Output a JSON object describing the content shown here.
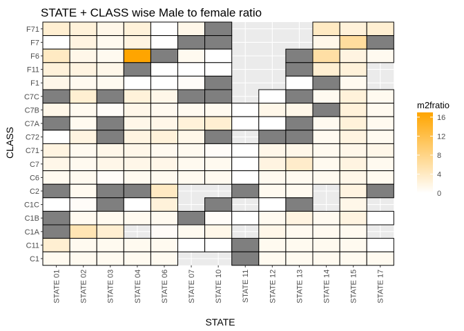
{
  "colors": {
    "panel_background": "#ebebeb",
    "grid_line": "#ffffff",
    "tile_border": "#000000",
    "na_fill": "#7f7f7f",
    "low": "#ffffff",
    "high": "#ffa500"
  },
  "chart_data": {
    "type": "heatmap",
    "title": "STATE + CLASS wise Male to female ratio",
    "xlabel": "STATE",
    "ylabel": "CLASS",
    "x": [
      "STATE 01",
      "STATE 02",
      "STATE 03",
      "STATE 04",
      "STATE 06",
      "STATE 07",
      "STATE 10",
      "STATE 11",
      "STATE 12",
      "STATE 13",
      "STATE 14",
      "STATE 15",
      "STATE 17"
    ],
    "y": [
      "F71",
      "F7",
      "F6",
      "F11",
      "F1",
      "C7C",
      "C7B",
      "C7A",
      "C72",
      "C71",
      "C7",
      "C6",
      "C2",
      "C1C",
      "C1B",
      "C1A",
      "C11",
      "C1"
    ],
    "legend": {
      "title": "m2fratio",
      "breaks": [
        16,
        12,
        8,
        4,
        0
      ],
      "range": [
        0,
        17
      ],
      "position": "right"
    },
    "note": "null = missing tile (panel background visible); \"NA\" = gray NA tile",
    "values": [
      [
        3,
        2.5,
        1.5,
        2.5,
        0,
        1.5,
        "NA",
        null,
        null,
        null,
        4,
        2.5,
        3
      ],
      [
        0,
        2,
        1,
        2,
        0,
        "NA",
        "NA",
        null,
        null,
        null,
        1.5,
        6.5,
        "NA"
      ],
      [
        4,
        1.5,
        1,
        17,
        "NA",
        1,
        0,
        null,
        null,
        "NA",
        6,
        2,
        1
      ],
      [
        2.5,
        2,
        1.5,
        "NA",
        0,
        0,
        0,
        null,
        null,
        "NA",
        3,
        2.5,
        null
      ],
      [
        1.5,
        1,
        1,
        0,
        0,
        0.5,
        "NA",
        null,
        null,
        0,
        "NA",
        1,
        null
      ],
      [
        "NA",
        3,
        "NA",
        2.5,
        1.5,
        "NA",
        "NA",
        null,
        0,
        "NA",
        1,
        2.5,
        1
      ],
      [
        1.5,
        1,
        0.5,
        1.5,
        1,
        1,
        1,
        0,
        1.5,
        1.5,
        "NA",
        2.5,
        1
      ],
      [
        "NA",
        1,
        "NA",
        1.5,
        1.5,
        2.5,
        3,
        0,
        0,
        "NA",
        1,
        2.5,
        1
      ],
      [
        0,
        2,
        "NA",
        2,
        2.5,
        1.5,
        "NA",
        null,
        "NA",
        "NA",
        1,
        2,
        1
      ],
      [
        2,
        1,
        1.5,
        1.5,
        1,
        1,
        0.5,
        0,
        1.5,
        1.5,
        1,
        1.5,
        1.5
      ],
      [
        1.5,
        1,
        1.5,
        1.5,
        1.5,
        1,
        1,
        0,
        2,
        3.5,
        1,
        2,
        1
      ],
      [
        1,
        1,
        0.5,
        1,
        1,
        1,
        1,
        0,
        1,
        1,
        1,
        1.5,
        1
      ],
      [
        "NA",
        1,
        "NA",
        "NA",
        4,
        null,
        null,
        "NA",
        1,
        1,
        null,
        2,
        "NA"
      ],
      [
        0,
        0.5,
        "NA",
        0,
        2.5,
        null,
        "NA",
        null,
        0,
        "NA",
        null,
        1.5,
        null
      ],
      [
        "NA",
        1,
        1,
        1,
        1,
        "NA",
        0.5,
        0,
        1,
        2,
        1,
        2,
        0
      ],
      [
        "NA",
        5,
        3,
        null,
        0.5,
        1,
        1.5,
        null,
        1.5,
        1,
        1,
        1,
        null
      ],
      [
        3,
        1,
        1,
        1,
        1,
        0,
        0,
        "NA",
        1,
        1,
        1,
        1,
        0
      ],
      [
        1,
        1,
        1,
        1,
        1,
        null,
        null,
        "NA",
        1,
        1,
        1,
        1,
        1
      ]
    ]
  }
}
